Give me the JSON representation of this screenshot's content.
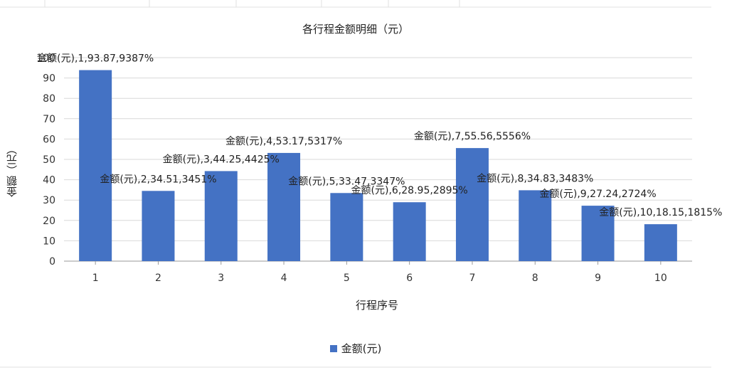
{
  "chart_data": {
    "type": "bar",
    "title": "各行程金额明细（元）",
    "xlabel": "行程序号",
    "ylabel": "金额（元）",
    "ylim": [
      0,
      100
    ],
    "yticks": [
      0,
      10,
      20,
      30,
      40,
      50,
      60,
      70,
      80,
      90,
      100
    ],
    "categories": [
      "1",
      "2",
      "3",
      "4",
      "5",
      "6",
      "7",
      "8",
      "9",
      "10"
    ],
    "series": [
      {
        "name": "金额(元)",
        "values": [
          93.87,
          34.51,
          44.25,
          53.17,
          33.47,
          28.95,
          55.56,
          34.83,
          27.24,
          18.15
        ]
      }
    ],
    "data_labels": [
      "金额(元),1,93.87,9387%",
      "金额(元),2,34.51,3451%",
      "金额(元),3,44.25,4425%",
      "金额(元),4,53.17,5317%",
      "金额(元),5,33.47,3347%",
      "金额(元),6,28.95,2895%",
      "金额(元),7,55.56,5556%",
      "金额(元),8,34.83,3483%",
      "金额(元),9,27.24,2724%",
      "金额(元),10,18.15,1815%"
    ],
    "legend": {
      "position": "bottom"
    },
    "grid": true,
    "bar_color": "#4472c4"
  }
}
